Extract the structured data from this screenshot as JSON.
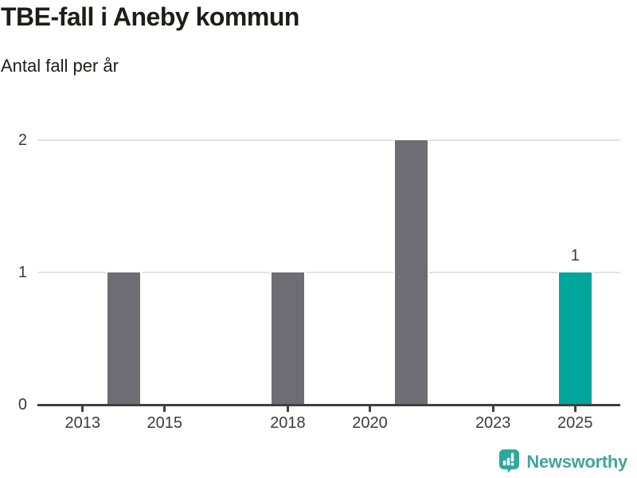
{
  "chart_data": {
    "type": "bar",
    "title": "TBE-fall i Aneby kommun",
    "subtitle": "Antal fall per år",
    "xlabel": "",
    "ylabel": "",
    "bars": [
      {
        "year": 2014,
        "value": 1,
        "highlight": false
      },
      {
        "year": 2018,
        "value": 1,
        "highlight": false
      },
      {
        "year": 2021,
        "value": 2,
        "highlight": false
      },
      {
        "year": 2025,
        "value": 1,
        "highlight": true,
        "label": "1"
      }
    ],
    "x_ticks": [
      "2013",
      "2015",
      "2018",
      "2020",
      "2023",
      "2025"
    ],
    "y_ticks": [
      "0",
      "1",
      "2"
    ],
    "ylim": [
      0,
      2
    ],
    "xlim": [
      2011.9,
      2026.1
    ],
    "grid": "horizontal",
    "legend": "none"
  },
  "footer": {
    "brand": "Newsworthy"
  },
  "colors": {
    "bar_default": "#6d6d73",
    "bar_highlight": "#00a69c",
    "axis": "#3f3f3f",
    "grid": "#e2e2e2",
    "title_text": "#1d1d1b",
    "label_text": "#3b3b3b",
    "brand": "#2ea79e",
    "brand_text": "#43a39c"
  }
}
